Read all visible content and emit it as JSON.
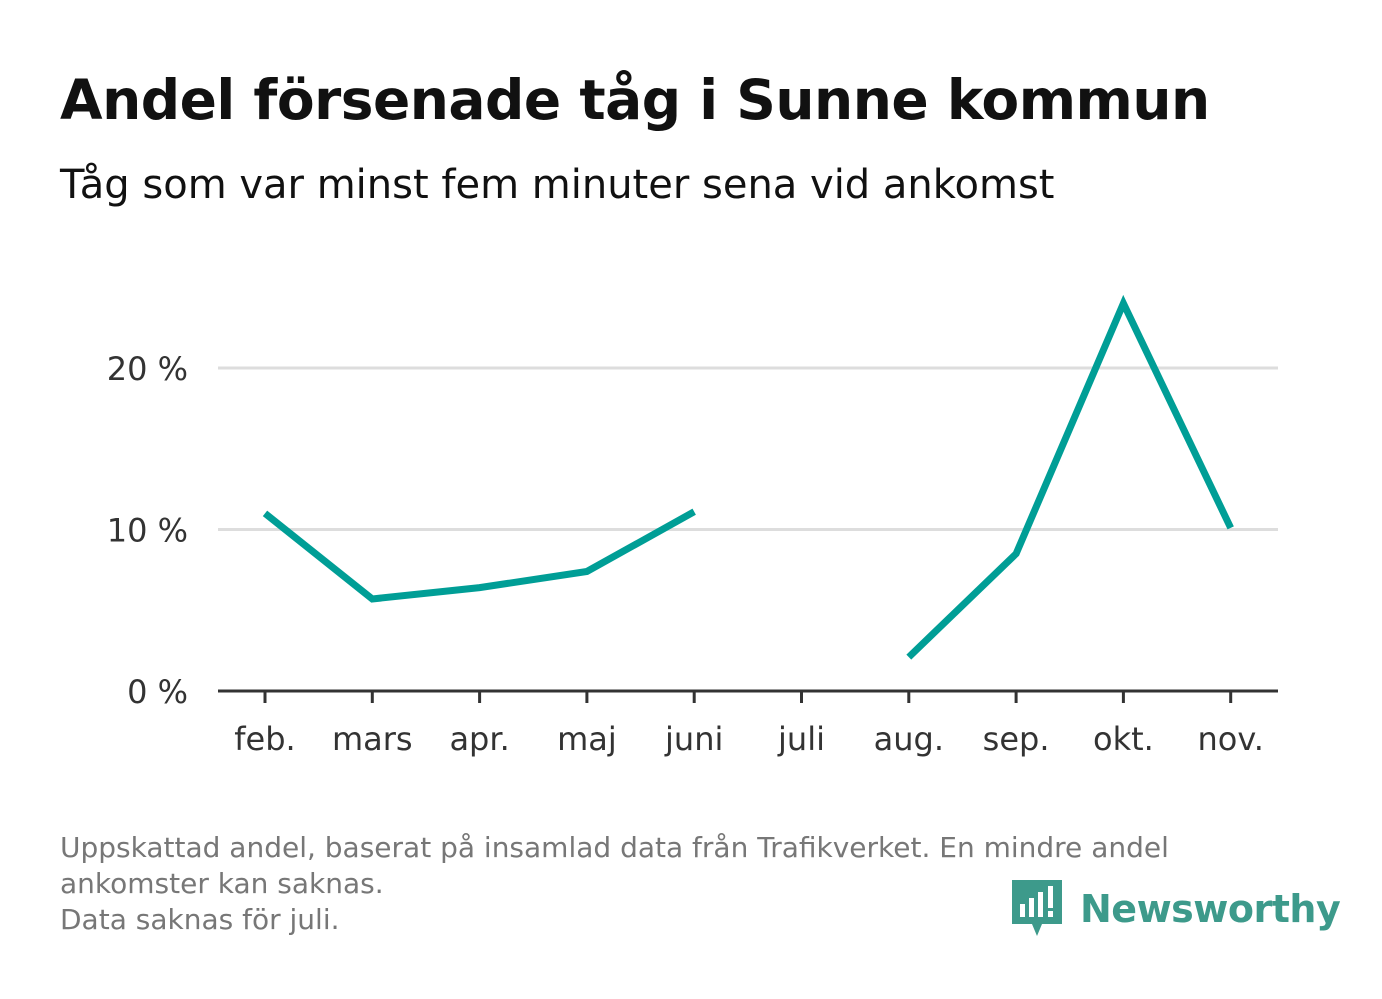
{
  "title": "Andel försenade tåg i Sunne kommun",
  "subtitle": "Tåg som var minst fem minuter sena vid ankomst",
  "footer": {
    "line1": "Uppskattad andel, baserat på insamlad data från Trafikverket. En mindre andel",
    "line2": "ankomster kan saknas.",
    "line3": "Data saknas för juli."
  },
  "logo": {
    "text": "Newsworthy",
    "icon": "bar-chart-speech-bubble-icon"
  },
  "colors": {
    "line": "#009e96",
    "grid": "#dddddd",
    "axis": "#333333",
    "logo": "#3d9a8b"
  },
  "chart_data": {
    "type": "line",
    "title": "Andel försenade tåg i Sunne kommun",
    "xlabel": "",
    "ylabel": "",
    "categories": [
      "feb.",
      "mars",
      "apr.",
      "maj",
      "juni",
      "juli",
      "aug.",
      "sep.",
      "okt.",
      "nov."
    ],
    "series": [
      {
        "name": "Andel försenade tåg",
        "values": [
          11.0,
          5.7,
          6.4,
          7.4,
          11.1,
          null,
          2.1,
          8.5,
          24.0,
          10.1
        ]
      }
    ],
    "yticks": [
      0,
      10,
      20
    ],
    "ytick_labels": [
      "0 %",
      "10 %",
      "20 %"
    ],
    "ylim": [
      0,
      25
    ],
    "grid": true
  }
}
